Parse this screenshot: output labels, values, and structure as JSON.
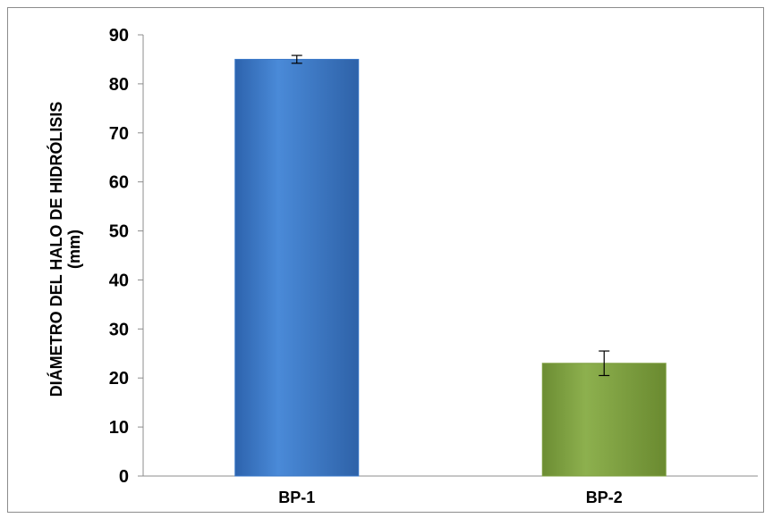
{
  "chart_data": {
    "type": "bar",
    "categories": [
      "BP-1",
      "BP-2"
    ],
    "values": [
      85,
      23
    ],
    "error": [
      0.8,
      2.5
    ],
    "ylabel_line1": "DIÁMETRO DEL HALO DE HIDRÓLISIS",
    "ylabel_line2": "(mm)",
    "xlabel": "",
    "title": "",
    "ylim": [
      0,
      90
    ],
    "yticks": [
      0,
      10,
      20,
      30,
      40,
      50,
      60,
      70,
      80,
      90
    ],
    "grid": false,
    "legend": "none",
    "colors": [
      "#3a78c8",
      "#7fa042"
    ]
  }
}
